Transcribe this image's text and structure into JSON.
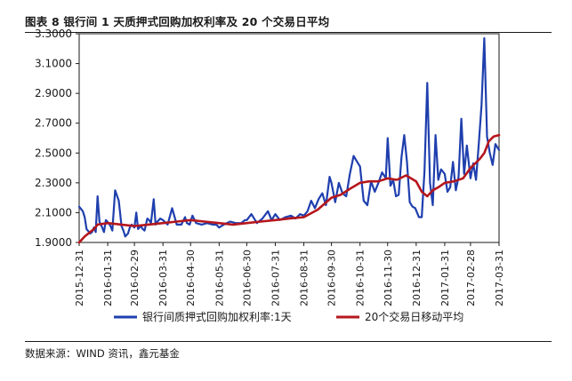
{
  "title": "图表 8  银行间 1 天质押式回购加权利率及 20 个交易日平均",
  "source": "数据来源：WIND 资讯，鑫元基金",
  "chart_data": {
    "type": "line",
    "y_ticks": [
      "1.9000",
      "2.1000",
      "2.3000",
      "2.5000",
      "2.7000",
      "2.9000",
      "3.1000",
      "3.3000"
    ],
    "ylim": [
      1.9,
      3.3
    ],
    "x_ticks": [
      "2015-12-31",
      "2016-01-31",
      "2016-02-29",
      "2016-03-31",
      "2016-04-30",
      "2016-05-31",
      "2016-06-30",
      "2016-07-31",
      "2016-08-31",
      "2016-09-30",
      "2016-10-31",
      "2016-11-30",
      "2016-12-31",
      "2017-01-31",
      "2017-02-28",
      "2017-03-31"
    ],
    "xlim": [
      "2015-12-31",
      "2017-03-31"
    ],
    "grid": false,
    "legend_position": "bottom",
    "colors": {
      "series_1": "#1f3fae",
      "series_2": "#b5161c"
    },
    "series": [
      {
        "name": "银行间质押式回购加权利率:1天",
        "x": [
          "2015-12-31",
          "2016-01-04",
          "2016-01-06",
          "2016-01-08",
          "2016-01-12",
          "2016-01-14",
          "2016-01-16",
          "2016-01-18",
          "2016-01-20",
          "2016-01-22",
          "2016-01-25",
          "2016-01-27",
          "2016-01-29",
          "2016-02-01",
          "2016-02-03",
          "2016-02-05",
          "2016-02-08",
          "2016-02-12",
          "2016-02-15",
          "2016-02-17",
          "2016-02-19",
          "2016-02-22",
          "2016-02-24",
          "2016-02-26",
          "2016-02-29",
          "2016-03-02",
          "2016-03-04",
          "2016-03-07",
          "2016-03-09",
          "2016-03-11",
          "2016-03-14",
          "2016-03-16",
          "2016-03-18",
          "2016-03-21",
          "2016-03-23",
          "2016-03-25",
          "2016-03-28",
          "2016-03-31",
          "2016-04-05",
          "2016-04-10",
          "2016-04-15",
          "2016-04-20",
          "2016-04-24",
          "2016-04-26",
          "2016-04-29",
          "2016-05-02",
          "2016-05-06",
          "2016-05-12",
          "2016-05-18",
          "2016-05-24",
          "2016-05-28",
          "2016-05-31",
          "2016-06-05",
          "2016-06-12",
          "2016-06-18",
          "2016-06-24",
          "2016-06-28",
          "2016-06-30",
          "2016-07-05",
          "2016-07-11",
          "2016-07-17",
          "2016-07-23",
          "2016-07-27",
          "2016-07-31",
          "2016-08-05",
          "2016-08-11",
          "2016-08-17",
          "2016-08-22",
          "2016-08-27",
          "2016-08-31",
          "2016-09-04",
          "2016-09-08",
          "2016-09-12",
          "2016-09-16",
          "2016-09-20",
          "2016-09-24",
          "2016-09-28",
          "2016-09-30",
          "2016-10-04",
          "2016-10-08",
          "2016-10-12",
          "2016-10-16",
          "2016-10-20",
          "2016-10-24",
          "2016-10-28",
          "2016-10-31",
          "2016-11-04",
          "2016-11-08",
          "2016-11-12",
          "2016-11-16",
          "2016-11-20",
          "2016-11-24",
          "2016-11-28",
          "2016-11-30",
          "2016-12-03",
          "2016-12-06",
          "2016-12-09",
          "2016-12-12",
          "2016-12-15",
          "2016-12-18",
          "2016-12-21",
          "2016-12-24",
          "2016-12-27",
          "2016-12-30",
          "2017-01-03",
          "2017-01-06",
          "2017-01-09",
          "2017-01-12",
          "2017-01-15",
          "2017-01-18",
          "2017-01-21",
          "2017-01-24",
          "2017-01-27",
          "2017-01-31",
          "2017-02-03",
          "2017-02-06",
          "2017-02-09",
          "2017-02-12",
          "2017-02-15",
          "2017-02-18",
          "2017-02-21",
          "2017-02-24",
          "2017-02-28",
          "2017-03-03",
          "2017-03-06",
          "2017-03-09",
          "2017-03-12",
          "2017-03-15",
          "2017-03-18",
          "2017-03-21",
          "2017-03-24",
          "2017-03-27",
          "2017-03-31"
        ],
        "values": [
          2.14,
          2.11,
          2.07,
          1.99,
          1.96,
          1.97,
          2.0,
          1.97,
          2.21,
          2.04,
          2.0,
          1.97,
          2.05,
          2.03,
          2.01,
          1.98,
          2.25,
          2.18,
          2.01,
          1.98,
          1.94,
          1.96,
          2.0,
          2.02,
          2.0,
          2.1,
          1.99,
          2.01,
          1.99,
          1.98,
          2.06,
          2.05,
          2.03,
          2.19,
          2.02,
          2.04,
          2.06,
          2.05,
          2.02,
          2.13,
          2.02,
          2.02,
          2.07,
          2.03,
          2.02,
          2.08,
          2.03,
          2.02,
          2.03,
          2.02,
          2.02,
          2.0,
          2.02,
          2.04,
          2.03,
          2.03,
          2.05,
          2.05,
          2.09,
          2.03,
          2.06,
          2.11,
          2.05,
          2.09,
          2.05,
          2.07,
          2.08,
          2.06,
          2.09,
          2.08,
          2.11,
          2.18,
          2.13,
          2.19,
          2.23,
          2.15,
          2.34,
          2.3,
          2.17,
          2.3,
          2.23,
          2.21,
          2.36,
          2.48,
          2.44,
          2.41,
          2.18,
          2.15,
          2.31,
          2.24,
          2.3,
          2.37,
          2.33,
          2.6,
          2.28,
          2.32,
          2.21,
          2.22,
          2.47,
          2.62,
          2.44,
          2.17,
          2.14,
          2.13,
          2.07,
          2.07,
          2.38,
          2.97,
          2.3,
          2.15,
          2.62,
          2.32,
          2.39,
          2.36,
          2.24,
          2.27,
          2.44,
          2.25,
          2.34,
          2.73,
          2.36,
          2.55,
          2.33,
          2.43,
          2.32,
          2.56,
          2.82,
          3.27,
          2.61,
          2.5,
          2.42,
          2.56,
          2.52
        ]
      },
      {
        "name": "20个交易日移动平均",
        "x": [
          "2015-12-31",
          "2016-01-06",
          "2016-01-12",
          "2016-01-16",
          "2016-01-20",
          "2016-01-31",
          "2016-02-15",
          "2016-02-29",
          "2016-03-15",
          "2016-03-31",
          "2016-04-15",
          "2016-04-30",
          "2016-05-15",
          "2016-05-31",
          "2016-06-15",
          "2016-06-30",
          "2016-07-15",
          "2016-07-31",
          "2016-08-15",
          "2016-08-31",
          "2016-09-15",
          "2016-09-30",
          "2016-10-10",
          "2016-10-20",
          "2016-10-31",
          "2016-11-10",
          "2016-11-20",
          "2016-11-30",
          "2016-12-10",
          "2016-12-20",
          "2016-12-31",
          "2017-01-06",
          "2017-01-12",
          "2017-01-18",
          "2017-01-24",
          "2017-01-31",
          "2017-02-10",
          "2017-02-20",
          "2017-02-28",
          "2017-03-10",
          "2017-03-15",
          "2017-03-20",
          "2017-03-25",
          "2017-03-31"
        ],
        "values": [
          1.9,
          1.94,
          1.97,
          1.99,
          2.02,
          2.03,
          2.02,
          2.01,
          2.02,
          2.03,
          2.04,
          2.05,
          2.04,
          2.03,
          2.02,
          2.03,
          2.04,
          2.05,
          2.06,
          2.07,
          2.12,
          2.2,
          2.22,
          2.26,
          2.3,
          2.31,
          2.31,
          2.33,
          2.32,
          2.35,
          2.31,
          2.24,
          2.21,
          2.25,
          2.27,
          2.3,
          2.31,
          2.33,
          2.4,
          2.46,
          2.5,
          2.58,
          2.61,
          2.62
        ]
      }
    ]
  }
}
